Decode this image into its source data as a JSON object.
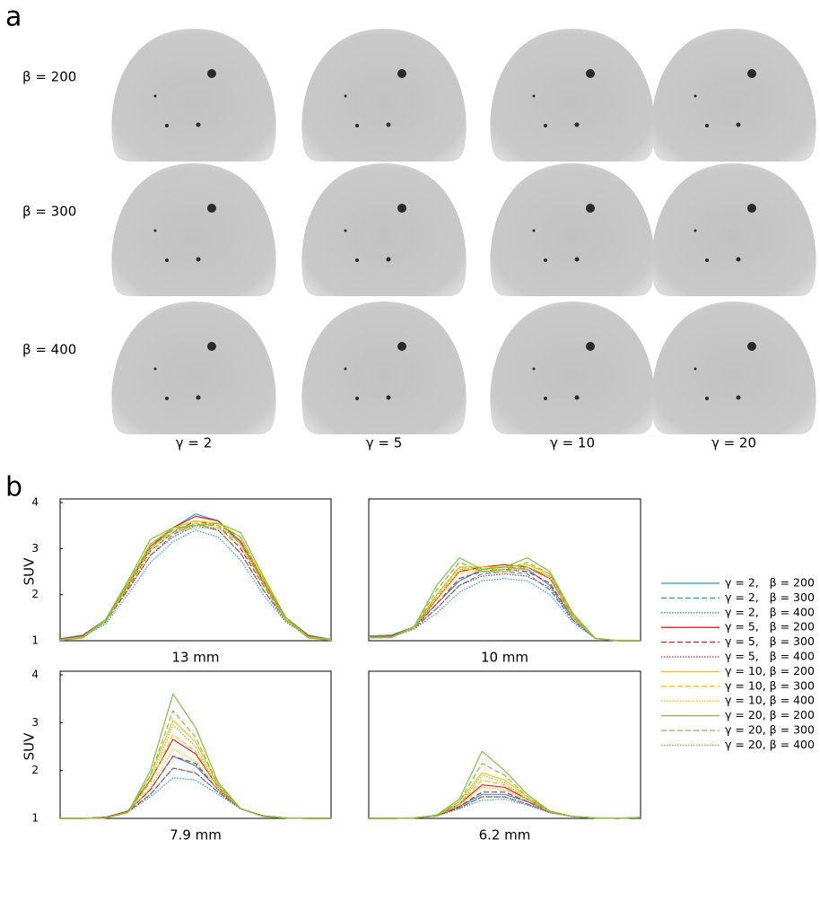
{
  "panel_a": {
    "label": "a",
    "rows": [
      "β = 200",
      "β = 300",
      "β = 400"
    ],
    "columns": [
      "γ = 2",
      "γ = 5",
      "γ = 10",
      "γ = 20"
    ]
  },
  "panel_b": {
    "label": "b"
  },
  "legend": [
    {
      "name": "γ = 2,   β = 200",
      "color": "#1ea0dc",
      "dash": "solid"
    },
    {
      "name": "γ = 2,   β = 300",
      "color": "#1ea0dc",
      "dash": "dashed"
    },
    {
      "name": "γ = 2,   β = 400",
      "color": "#1ea0dc",
      "dash": "dotted"
    },
    {
      "name": "γ = 5,   β = 200",
      "color": "#e8211d",
      "dash": "solid"
    },
    {
      "name": "γ = 5,   β = 300",
      "color": "#e8211d",
      "dash": "dashed"
    },
    {
      "name": "γ = 5,   β = 400",
      "color": "#e8211d",
      "dash": "dotted"
    },
    {
      "name": "γ = 10, β = 200",
      "color": "#ffc000",
      "dash": "solid"
    },
    {
      "name": "γ = 10, β = 300",
      "color": "#ffc000",
      "dash": "dashed"
    },
    {
      "name": "γ = 10, β = 400",
      "color": "#ffc000",
      "dash": "dotted"
    },
    {
      "name": "γ = 20, β = 200",
      "color": "#7dc242",
      "dash": "solid"
    },
    {
      "name": "γ = 20, β = 300",
      "color": "#7dc242",
      "dash": "dashed"
    },
    {
      "name": "γ = 20, β = 400",
      "color": "#7dc242",
      "dash": "dotted"
    }
  ],
  "chart_data": [
    {
      "type": "line",
      "xlabel": "13 mm",
      "ylabel": "SUV",
      "ylim": [
        1,
        4
      ],
      "yticks": [
        1,
        2,
        3,
        4
      ],
      "series": [
        {
          "values": [
            1.04,
            1.12,
            1.45,
            2.2,
            3.0,
            3.45,
            3.75,
            3.6,
            3.1,
            2.25,
            1.5,
            1.12,
            1.03
          ]
        },
        {
          "values": [
            1.04,
            1.12,
            1.4,
            2.1,
            2.85,
            3.3,
            3.55,
            3.4,
            2.9,
            2.1,
            1.45,
            1.1,
            1.03
          ]
        },
        {
          "values": [
            1.04,
            1.1,
            1.35,
            2.0,
            2.7,
            3.15,
            3.4,
            3.25,
            2.75,
            2.0,
            1.4,
            1.1,
            1.03
          ]
        },
        {
          "values": [
            1.03,
            1.1,
            1.45,
            2.2,
            3.05,
            3.45,
            3.7,
            3.6,
            3.15,
            2.3,
            1.5,
            1.1,
            1.02
          ]
        },
        {
          "values": [
            1.03,
            1.1,
            1.42,
            2.15,
            2.95,
            3.35,
            3.6,
            3.5,
            3.0,
            2.2,
            1.45,
            1.1,
            1.02
          ]
        },
        {
          "values": [
            1.03,
            1.1,
            1.4,
            2.1,
            2.85,
            3.25,
            3.5,
            3.4,
            2.9,
            2.1,
            1.42,
            1.1,
            1.02
          ]
        },
        {
          "values": [
            1.02,
            1.08,
            1.45,
            2.25,
            3.1,
            3.45,
            3.6,
            3.55,
            3.25,
            2.35,
            1.5,
            1.08,
            1.02
          ]
        },
        {
          "values": [
            1.02,
            1.08,
            1.42,
            2.2,
            3.0,
            3.4,
            3.55,
            3.5,
            3.1,
            2.25,
            1.45,
            1.08,
            1.02
          ]
        },
        {
          "values": [
            1.02,
            1.08,
            1.4,
            2.15,
            2.95,
            3.35,
            3.5,
            3.45,
            3.05,
            2.2,
            1.42,
            1.08,
            1.02
          ]
        },
        {
          "values": [
            1.01,
            1.06,
            1.45,
            2.3,
            3.2,
            3.45,
            3.5,
            3.55,
            3.35,
            2.4,
            1.5,
            1.06,
            1.01
          ]
        },
        {
          "values": [
            1.01,
            1.06,
            1.43,
            2.25,
            3.1,
            3.4,
            3.5,
            3.5,
            3.25,
            2.3,
            1.45,
            1.06,
            1.01
          ]
        },
        {
          "values": [
            1.01,
            1.06,
            1.4,
            2.2,
            3.05,
            3.35,
            3.45,
            3.45,
            3.2,
            2.25,
            1.42,
            1.06,
            1.01
          ]
        }
      ]
    },
    {
      "type": "line",
      "xlabel": "10 mm",
      "ylim": [
        1,
        4
      ],
      "series": [
        {
          "values": [
            1.1,
            1.12,
            1.3,
            1.8,
            2.3,
            2.55,
            2.6,
            2.55,
            2.2,
            1.5,
            1.05,
            1.0,
            1.0
          ]
        },
        {
          "values": [
            1.1,
            1.12,
            1.28,
            1.7,
            2.2,
            2.45,
            2.5,
            2.45,
            2.1,
            1.45,
            1.05,
            1.0,
            1.0
          ]
        },
        {
          "values": [
            1.1,
            1.1,
            1.25,
            1.6,
            2.05,
            2.3,
            2.35,
            2.3,
            2.0,
            1.4,
            1.05,
            1.0,
            1.0
          ]
        },
        {
          "values": [
            1.08,
            1.1,
            1.3,
            1.9,
            2.5,
            2.6,
            2.65,
            2.6,
            2.35,
            1.55,
            1.05,
            1.0,
            1.0
          ]
        },
        {
          "values": [
            1.08,
            1.1,
            1.28,
            1.8,
            2.35,
            2.5,
            2.55,
            2.5,
            2.25,
            1.5,
            1.05,
            1.0,
            1.0
          ]
        },
        {
          "values": [
            1.08,
            1.1,
            1.26,
            1.7,
            2.2,
            2.4,
            2.45,
            2.4,
            2.15,
            1.45,
            1.05,
            1.0,
            1.0
          ]
        },
        {
          "values": [
            1.07,
            1.08,
            1.3,
            2.0,
            2.6,
            2.6,
            2.6,
            2.65,
            2.45,
            1.6,
            1.05,
            1.0,
            1.0
          ]
        },
        {
          "values": [
            1.07,
            1.08,
            1.28,
            1.95,
            2.55,
            2.55,
            2.55,
            2.6,
            2.4,
            1.55,
            1.05,
            1.0,
            1.0
          ]
        },
        {
          "values": [
            1.07,
            1.08,
            1.26,
            1.9,
            2.5,
            2.5,
            2.5,
            2.55,
            2.35,
            1.5,
            1.05,
            1.0,
            1.0
          ]
        },
        {
          "values": [
            1.06,
            1.07,
            1.3,
            2.2,
            2.8,
            2.55,
            2.6,
            2.8,
            2.5,
            1.6,
            1.05,
            1.0,
            1.0
          ]
        },
        {
          "values": [
            1.06,
            1.07,
            1.28,
            2.1,
            2.7,
            2.5,
            2.55,
            2.7,
            2.45,
            1.55,
            1.05,
            1.0,
            1.0
          ]
        },
        {
          "values": [
            1.06,
            1.07,
            1.26,
            2.0,
            2.6,
            2.5,
            2.5,
            2.6,
            2.4,
            1.5,
            1.05,
            1.0,
            1.0
          ]
        }
      ]
    },
    {
      "type": "line",
      "xlabel": "7.9 mm",
      "ylabel": "SUV",
      "ylim": [
        1,
        4
      ],
      "yticks": [
        1,
        2,
        3,
        4
      ],
      "series": [
        {
          "values": [
            1,
            1,
            1.02,
            1.15,
            1.6,
            2.3,
            2.1,
            1.6,
            1.2,
            1.05,
            1.01,
            1,
            1
          ]
        },
        {
          "values": [
            1,
            1,
            1.02,
            1.14,
            1.5,
            2.05,
            1.95,
            1.55,
            1.2,
            1.05,
            1.01,
            1,
            1
          ]
        },
        {
          "values": [
            1,
            1,
            1.02,
            1.13,
            1.45,
            1.85,
            1.8,
            1.5,
            1.2,
            1.05,
            1.01,
            1,
            1
          ]
        },
        {
          "values": [
            1,
            1,
            1.02,
            1.15,
            1.8,
            2.65,
            2.35,
            1.65,
            1.2,
            1.05,
            1.01,
            1,
            1
          ]
        },
        {
          "values": [
            1,
            1,
            1.02,
            1.14,
            1.6,
            2.3,
            2.15,
            1.6,
            1.2,
            1.05,
            1.01,
            1,
            1
          ]
        },
        {
          "values": [
            1,
            1,
            1.02,
            1.13,
            1.5,
            2.05,
            1.95,
            1.55,
            1.2,
            1.05,
            1.01,
            1,
            1
          ]
        },
        {
          "values": [
            1,
            1,
            1.01,
            1.13,
            1.9,
            3.05,
            2.6,
            1.7,
            1.2,
            1.04,
            1.01,
            1,
            1
          ]
        },
        {
          "values": [
            1,
            1,
            1.01,
            1.13,
            1.75,
            2.75,
            2.4,
            1.65,
            1.2,
            1.04,
            1.01,
            1,
            1
          ]
        },
        {
          "values": [
            1,
            1,
            1.01,
            1.12,
            1.65,
            2.45,
            2.2,
            1.6,
            1.2,
            1.04,
            1.01,
            1,
            1
          ]
        },
        {
          "values": [
            1,
            1,
            1.01,
            1.12,
            2.0,
            3.6,
            2.9,
            1.75,
            1.2,
            1.04,
            1.01,
            1,
            1
          ]
        },
        {
          "values": [
            1,
            1,
            1.01,
            1.12,
            1.9,
            3.25,
            2.7,
            1.7,
            1.2,
            1.04,
            1.01,
            1,
            1
          ]
        },
        {
          "values": [
            1,
            1,
            1.01,
            1.12,
            1.8,
            2.95,
            2.5,
            1.65,
            1.2,
            1.04,
            1.01,
            1,
            1
          ]
        }
      ]
    },
    {
      "type": "line",
      "xlabel": "6.2 mm",
      "ylim": [
        1,
        4
      ],
      "series": [
        {
          "values": [
            1,
            1,
            1.01,
            1.05,
            1.25,
            1.5,
            1.5,
            1.35,
            1.15,
            1.04,
            1.01,
            1,
            1.02
          ]
        },
        {
          "values": [
            1,
            1,
            1.01,
            1.05,
            1.22,
            1.45,
            1.45,
            1.3,
            1.13,
            1.04,
            1.01,
            1,
            1.02
          ]
        },
        {
          "values": [
            1,
            1,
            1.01,
            1.05,
            1.2,
            1.38,
            1.4,
            1.28,
            1.12,
            1.04,
            1.01,
            1,
            1.02
          ]
        },
        {
          "values": [
            1,
            1,
            1.01,
            1.06,
            1.3,
            1.7,
            1.65,
            1.4,
            1.15,
            1.04,
            1.01,
            1,
            1.02
          ]
        },
        {
          "values": [
            1,
            1,
            1.01,
            1.05,
            1.25,
            1.55,
            1.55,
            1.35,
            1.13,
            1.04,
            1.01,
            1,
            1.02
          ]
        },
        {
          "values": [
            1,
            1,
            1.01,
            1.05,
            1.22,
            1.45,
            1.45,
            1.3,
            1.12,
            1.04,
            1.01,
            1,
            1.02
          ]
        },
        {
          "values": [
            1,
            1,
            1.01,
            1.06,
            1.35,
            1.95,
            1.8,
            1.45,
            1.15,
            1.04,
            1.01,
            1,
            1.02
          ]
        },
        {
          "values": [
            1,
            1,
            1.01,
            1.06,
            1.3,
            1.8,
            1.7,
            1.4,
            1.14,
            1.04,
            1.01,
            1,
            1.02
          ]
        },
        {
          "values": [
            1,
            1,
            1.01,
            1.05,
            1.28,
            1.65,
            1.6,
            1.38,
            1.13,
            1.04,
            1.01,
            1,
            1.02
          ]
        },
        {
          "values": [
            1,
            1,
            1.01,
            1.07,
            1.4,
            2.4,
            2.0,
            1.5,
            1.15,
            1.04,
            1.01,
            1,
            1.02
          ]
        },
        {
          "values": [
            1,
            1,
            1.01,
            1.06,
            1.35,
            2.15,
            1.9,
            1.45,
            1.14,
            1.04,
            1.01,
            1,
            1.02
          ]
        },
        {
          "values": [
            1,
            1,
            1.01,
            1.06,
            1.3,
            1.9,
            1.75,
            1.4,
            1.13,
            1.04,
            1.01,
            1,
            1.02
          ]
        }
      ]
    }
  ]
}
